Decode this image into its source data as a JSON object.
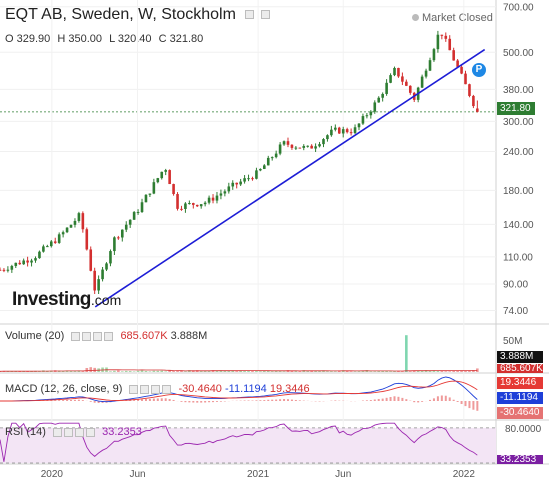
{
  "header": {
    "title": "EQT AB, Sweden, W, Stockholm",
    "market_status": "Market Closed",
    "ohlc": {
      "o_label": "O",
      "o": "329.90",
      "h_label": "H",
      "h": "350.00",
      "l_label": "L",
      "l": "320.40",
      "c_label": "C",
      "c": "321.80"
    }
  },
  "watermark": {
    "brand": "Investing",
    "suffix": ".com"
  },
  "price_pane": {
    "last_price_label": "321.80",
    "marker_label": "P",
    "colors": {
      "up": "#2e7d32",
      "down": "#d32f2f",
      "trendline": "#1d1dd6",
      "marker": "#1e88e5",
      "last_price_bg": "#2e7d32"
    }
  },
  "volume_pane": {
    "label": "Volume (20)",
    "val1": "685.607K",
    "val2": "3.888M",
    "scale_top": "50M",
    "badge_current": "3.888M",
    "badge_avg": "685.607K",
    "colors": {
      "up": "#a5d6a7",
      "down": "#ef9a9a",
      "highlight": "#7fd6b0",
      "ma": "#d32f2f"
    }
  },
  "macd_pane": {
    "label": "MACD (12, 26, close, 9)",
    "hist": "-30.4640",
    "macd": "-11.1194",
    "signal": "19.3446",
    "badge_signal": "19.3446",
    "badge_macd": "-11.1194",
    "badge_hist": "-30.4640",
    "colors": {
      "macd": "#1e3fd8",
      "signal": "#e53935",
      "hist": "#ef9a9a"
    }
  },
  "rsi_pane": {
    "label": "RSI (14)",
    "value": "33.2353",
    "level_80": "80.0000",
    "badge_value": "33.2353",
    "colors": {
      "line": "#9c27b0",
      "band": "#f3e5f5",
      "level": "#888888"
    }
  },
  "x_axis": {
    "labels": [
      "2020",
      "Jun",
      "2021",
      "Jun",
      "2022"
    ]
  },
  "chart_data": {
    "type": "candlestick",
    "title": "EQT AB, Sweden, W, Stockholm",
    "timeframe": "W",
    "y_scale": "log",
    "y_ticks": [
      74,
      90,
      110,
      140,
      180,
      240,
      300,
      380,
      500,
      700
    ],
    "ylim": [
      70,
      720
    ],
    "x_range": [
      "2019-10",
      "2022-02"
    ],
    "last_close": 321.8,
    "last_candle": {
      "open": 329.9,
      "high": 350.0,
      "low": 320.4,
      "close": 321.8
    },
    "close_path": [
      {
        "date": "2019-10-01",
        "close": 100
      },
      {
        "date": "2019-12-01",
        "close": 110
      },
      {
        "date": "2020-01-15",
        "close": 128
      },
      {
        "date": "2020-02-20",
        "close": 150
      },
      {
        "date": "2020-03-18",
        "close": 85
      },
      {
        "date": "2020-04-20",
        "close": 125
      },
      {
        "date": "2020-06-01",
        "close": 155
      },
      {
        "date": "2020-07-20",
        "close": 215
      },
      {
        "date": "2020-08-10",
        "close": 160
      },
      {
        "date": "2020-10-01",
        "close": 165
      },
      {
        "date": "2020-11-15",
        "close": 185
      },
      {
        "date": "2021-01-01",
        "close": 205
      },
      {
        "date": "2021-02-15",
        "close": 255
      },
      {
        "date": "2021-04-01",
        "close": 245
      },
      {
        "date": "2021-05-15",
        "close": 280
      },
      {
        "date": "2021-06-20",
        "close": 280
      },
      {
        "date": "2021-08-01",
        "close": 350
      },
      {
        "date": "2021-09-01",
        "close": 440
      },
      {
        "date": "2021-10-05",
        "close": 355
      },
      {
        "date": "2021-11-20",
        "close": 590
      },
      {
        "date": "2021-12-20",
        "close": 450
      },
      {
        "date": "2022-01-25",
        "close": 321.8
      }
    ],
    "trendline": [
      {
        "date": "2020-03-18",
        "value": 76
      },
      {
        "date": "2022-02-07",
        "value": 510
      }
    ],
    "volume": {
      "ylim": [
        0,
        50000000
      ],
      "scale_label": "50M",
      "last": 3888000,
      "average": 685607,
      "spike": {
        "date": "2021-09-20",
        "value": 40000000
      }
    },
    "macd": {
      "fast": 12,
      "slow": 26,
      "source": "close",
      "signal_period": 9,
      "histogram": -30.464,
      "macd": -11.1194,
      "signal": 19.3446
    },
    "rsi": {
      "period": 14,
      "value": 33.2353,
      "upper_level": 80
    }
  }
}
